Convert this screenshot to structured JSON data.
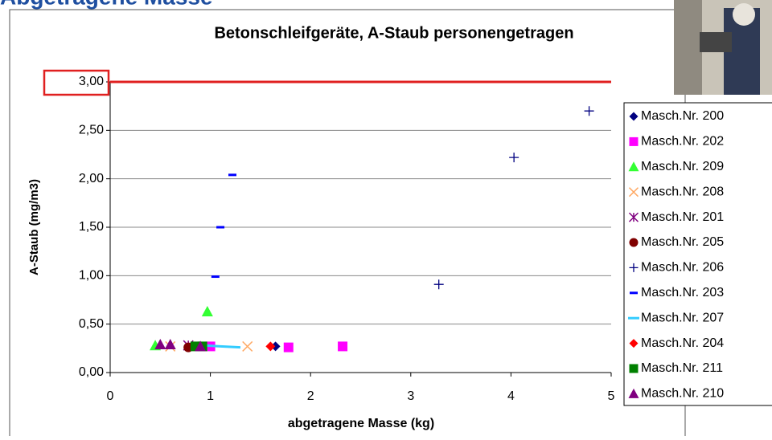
{
  "heading": "Abgetragene Masse",
  "chart_data": {
    "type": "scatter",
    "title": "Betonschleifgeräte, A-Staub personengetragen",
    "x_label": "abgetragene Masse (kg)",
    "y_label": "A-Staub (mg/m3)",
    "xlim": [
      0,
      5
    ],
    "xticks": [
      0,
      1,
      2,
      3,
      4,
      5
    ],
    "ylim": [
      0,
      3
    ],
    "yticks": [
      {
        "value": 0,
        "label": "0,00"
      },
      {
        "value": 0.5,
        "label": "0,50"
      },
      {
        "value": 1,
        "label": "1,00"
      },
      {
        "value": 1.5,
        "label": "1,50"
      },
      {
        "value": 2,
        "label": "2,00"
      },
      {
        "value": 2.5,
        "label": "2,50"
      },
      {
        "value": 3,
        "label": "3,00"
      }
    ],
    "grid": true,
    "limit_line": {
      "value": 3,
      "color": "#e02020"
    },
    "legend": "right",
    "series": [
      {
        "name": "Masch.Nr. 200",
        "color": "#000080",
        "marker": "diamond",
        "x": [
          1.65
        ],
        "y": [
          0.27
        ]
      },
      {
        "name": "Masch.Nr. 202",
        "color": "#ff00ff",
        "marker": "square",
        "x": [
          1.0,
          1.78,
          2.32
        ],
        "y": [
          0.27,
          0.26,
          0.27
        ]
      },
      {
        "name": "Masch.Nr. 209",
        "color": "#33ff33",
        "marker": "triangle",
        "x": [
          0.45,
          0.97
        ],
        "y": [
          0.28,
          0.63
        ]
      },
      {
        "name": "Masch.Nr. 208",
        "color": "#ffaa66",
        "marker": "cross",
        "x": [
          0.6,
          1.37
        ],
        "y": [
          0.27,
          0.27
        ]
      },
      {
        "name": "Masch.Nr. 201",
        "color": "#800080",
        "marker": "star",
        "x": [
          0.78
        ],
        "y": [
          0.28
        ]
      },
      {
        "name": "Masch.Nr. 205",
        "color": "#800000",
        "marker": "circle",
        "x": [
          0.78
        ],
        "y": [
          0.26
        ]
      },
      {
        "name": "Masch.Nr. 206",
        "color": "#000080",
        "marker": "plus",
        "x": [
          3.28,
          4.03,
          4.78
        ],
        "y": [
          0.91,
          2.22,
          2.7
        ]
      },
      {
        "name": "Masch.Nr. 203",
        "color": "#0000ff",
        "marker": "dash",
        "x": [
          1.05,
          1.1,
          1.22
        ],
        "y": [
          0.99,
          1.5,
          2.04
        ]
      },
      {
        "name": "Masch.Nr. 207",
        "color": "#33ccff",
        "marker": "line",
        "x": [
          0.95,
          1.1,
          1.3
        ],
        "y": [
          0.28,
          0.27,
          0.26
        ]
      },
      {
        "name": "Masch.Nr. 204",
        "color": "#ff0000",
        "marker": "diamond",
        "x": [
          1.6
        ],
        "y": [
          0.27
        ]
      },
      {
        "name": "Masch.Nr. 211",
        "color": "#008000",
        "marker": "square",
        "x": [
          0.85,
          0.92
        ],
        "y": [
          0.27,
          0.27
        ]
      },
      {
        "name": "Masch.Nr. 210",
        "color": "#800080",
        "marker": "triangle",
        "x": [
          0.5,
          0.6,
          0.9
        ],
        "y": [
          0.29,
          0.29,
          0.27
        ]
      }
    ]
  }
}
